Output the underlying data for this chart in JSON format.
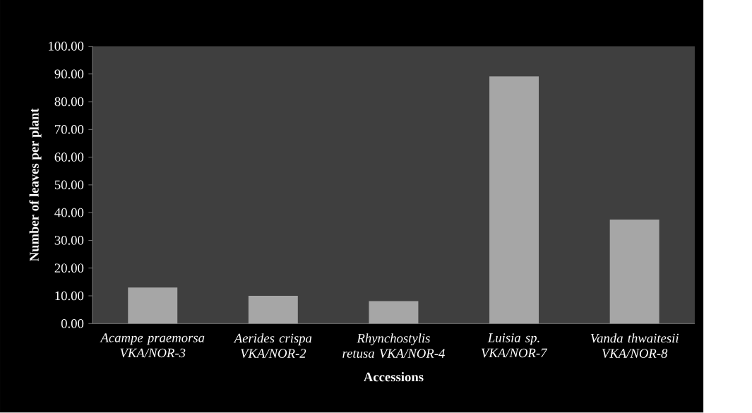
{
  "chart_data": {
    "type": "bar",
    "xlabel": "Accessions",
    "ylabel": "Number of leaves per plant",
    "categories": [
      "*Acampe praemorsa VKA/NOR-3*",
      "*Aerides crispa VKA/NOR-2*",
      "*Rhynchostylis retusa VKA/NOR-4*",
      "*Luisia sp. VKA/NOR-7*",
      "*Vanda thwaitesii VKA/NOR-8*"
    ],
    "values": [
      13.0,
      10.0,
      8.1,
      89.1,
      37.5
    ],
    "color": "#a6a6a6",
    "ylim": [
      0,
      100
    ],
    "yticks": [
      {
        "value": 0,
        "label": "0.00"
      },
      {
        "value": 10,
        "label": "10.00"
      },
      {
        "value": 20,
        "label": "20.00"
      },
      {
        "value": 30,
        "label": "30.00"
      },
      {
        "value": 40,
        "label": "40.00"
      },
      {
        "value": 50,
        "label": "50.00"
      },
      {
        "value": 60,
        "label": "60.00"
      },
      {
        "value": 70,
        "label": "70.00"
      },
      {
        "value": 80,
        "label": "80.00"
      },
      {
        "value": 90,
        "label": "90.00"
      },
      {
        "value": 100,
        "label": "100.00"
      }
    ]
  }
}
